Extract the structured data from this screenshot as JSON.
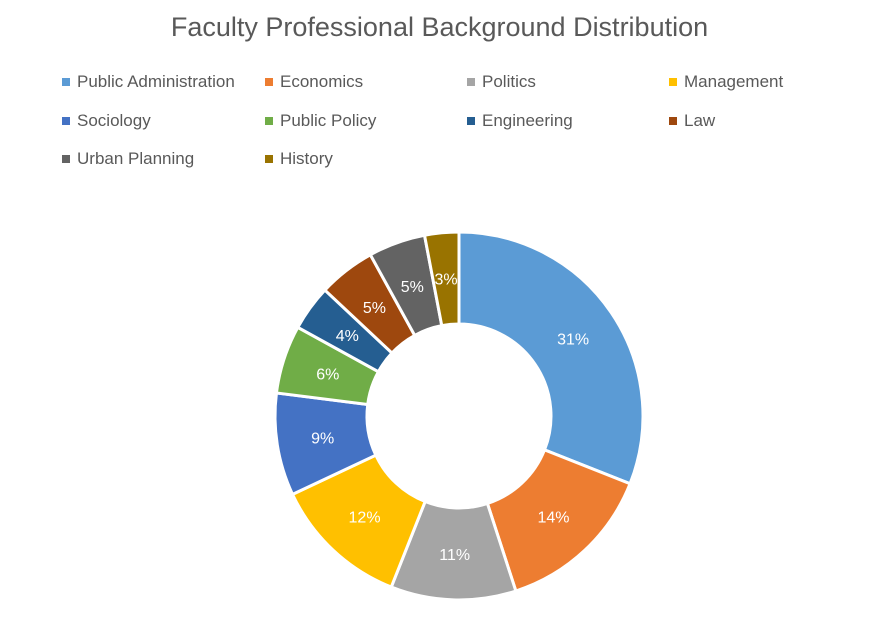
{
  "chart_data": {
    "type": "pie",
    "variant": "donut",
    "title": "Faculty Professional Background Distribution",
    "legend_position": "top",
    "categories": [
      "Public Administration",
      "Economics",
      "Politics",
      "Management",
      "Sociology",
      "Public Policy",
      "Engineering",
      "Law",
      "Urban Planning",
      "History"
    ],
    "values": [
      31,
      14,
      11,
      12,
      9,
      6,
      4,
      5,
      5,
      3
    ],
    "labels": [
      "31%",
      "14%",
      "11%",
      "12%",
      "9%",
      "6%",
      "4%",
      "5%",
      "5%",
      "3%"
    ],
    "colors": [
      "#5B9BD5",
      "#ED7D31",
      "#A5A5A5",
      "#FFC000",
      "#4472C4",
      "#70AD47",
      "#255E91",
      "#9E480E",
      "#636363",
      "#997300"
    ],
    "unit": "%"
  }
}
